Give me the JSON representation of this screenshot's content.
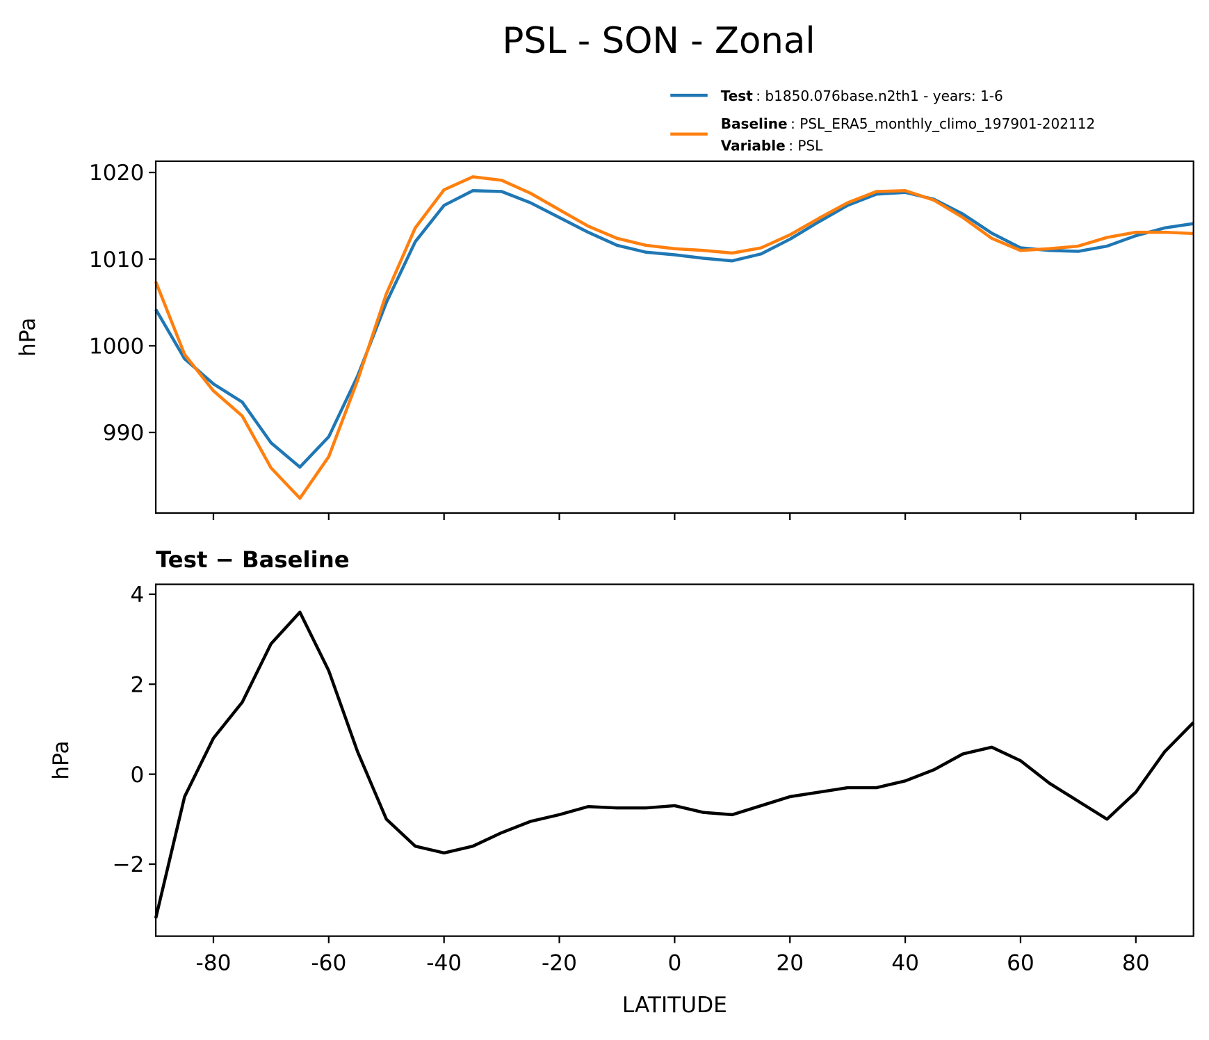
{
  "title": "PSL - SON - Zonal",
  "chart_data": [
    {
      "type": "line",
      "legend": "upper right",
      "ylabel": "hPa",
      "x": [
        -90,
        -85,
        -80,
        -75,
        -70,
        -65,
        -60,
        -55,
        -50,
        -45,
        -40,
        -35,
        -30,
        -25,
        -20,
        -15,
        -10,
        -5,
        0,
        5,
        10,
        15,
        20,
        25,
        30,
        35,
        40,
        45,
        50,
        55,
        60,
        65,
        70,
        75,
        80,
        85,
        90
      ],
      "series": [
        {
          "name": "Test",
          "description": ": b1850.076base.n2th1 - years: 1-6",
          "color": "#1f77b4",
          "values": [
            1004.2,
            998.5,
            995.6,
            993.5,
            988.8,
            986.0,
            989.5,
            996.5,
            1005.0,
            1012.0,
            1016.2,
            1017.9,
            1017.8,
            1016.5,
            1014.8,
            1013.1,
            1011.6,
            1010.8,
            1010.5,
            1010.1,
            1009.8,
            1010.6,
            1012.3,
            1014.3,
            1016.2,
            1017.5,
            1017.7,
            1016.9,
            1015.2,
            1013.0,
            1011.3,
            1011.0,
            1010.9,
            1011.5,
            1012.7,
            1013.6,
            1014.1
          ]
        },
        {
          "name": "Baseline",
          "description": ": PSL_ERA5_monthly_climo_197901-202112",
          "color": "#ff7f0e",
          "values": [
            1007.4,
            999.0,
            994.8,
            991.9,
            985.9,
            982.4,
            987.2,
            996.0,
            1006.0,
            1013.6,
            1018.0,
            1019.5,
            1019.1,
            1017.6,
            1015.7,
            1013.8,
            1012.4,
            1011.6,
            1011.2,
            1011.0,
            1010.7,
            1011.3,
            1012.8,
            1014.7,
            1016.5,
            1017.8,
            1017.9,
            1016.8,
            1014.8,
            1012.4,
            1011.0,
            1011.2,
            1011.5,
            1012.5,
            1013.1,
            1013.1,
            1012.95
          ]
        }
      ],
      "legend_extra": {
        "name": "Variable",
        "description": ": PSL"
      },
      "xlim": [
        -90,
        90
      ],
      "xticks": [
        -80,
        -60,
        -40,
        -20,
        0,
        20,
        40,
        60,
        80
      ],
      "ylim": [
        980.7,
        1021.3
      ],
      "yticks": [
        990,
        1000,
        1010,
        1020
      ]
    },
    {
      "type": "line",
      "title": "Test − Baseline",
      "xlabel": "LATITUDE",
      "ylabel": "hPa",
      "x": [
        -90,
        -85,
        -80,
        -75,
        -70,
        -65,
        -60,
        -55,
        -50,
        -45,
        -40,
        -35,
        -30,
        -25,
        -20,
        -15,
        -10,
        -5,
        0,
        5,
        10,
        15,
        20,
        25,
        30,
        35,
        40,
        45,
        50,
        55,
        60,
        65,
        70,
        75,
        80,
        85,
        90
      ],
      "color": "#000000",
      "values": [
        -3.2,
        -0.5,
        0.8,
        1.6,
        2.9,
        3.6,
        2.3,
        0.5,
        -1.0,
        -1.6,
        -1.75,
        -1.6,
        -1.3,
        -1.05,
        -0.9,
        -0.72,
        -0.75,
        -0.75,
        -0.7,
        -0.85,
        -0.9,
        -0.7,
        -0.5,
        -0.4,
        -0.3,
        -0.3,
        -0.15,
        0.1,
        0.45,
        0.6,
        0.3,
        -0.2,
        -0.6,
        -1.0,
        -0.4,
        0.5,
        1.15
      ],
      "xlim": [
        -90,
        90
      ],
      "xticks": [
        -80,
        -60,
        -40,
        -20,
        0,
        20,
        40,
        60,
        80
      ],
      "ylim": [
        -3.6,
        4.22
      ],
      "yticks": [
        {
          "value": -2,
          "label": "−2"
        },
        0,
        2,
        4
      ]
    }
  ]
}
